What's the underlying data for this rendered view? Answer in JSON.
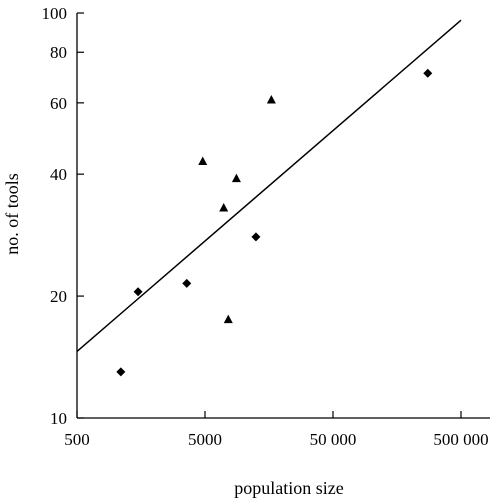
{
  "chart_data": {
    "type": "scatter",
    "title": "",
    "xlabel": "population size",
    "ylabel": "no. of tools",
    "x_scale": "log",
    "y_scale": "log",
    "xlim": [
      500,
      500000
    ],
    "ylim": [
      10,
      100
    ],
    "x_ticks": [
      500,
      5000,
      50000,
      500000
    ],
    "x_tick_labels": [
      "500",
      "5000",
      "50 000",
      "500 000"
    ],
    "y_ticks": [
      10,
      20,
      40,
      60,
      80,
      100
    ],
    "y_tick_labels": [
      "10",
      "20",
      "40",
      "60",
      "80",
      "100"
    ],
    "grid": false,
    "legend": "none",
    "series": [
      {
        "marker": "diamond",
        "points": [
          {
            "x": 1100,
            "y": 13
          },
          {
            "x": 1500,
            "y": 20.5
          },
          {
            "x": 3600,
            "y": 21.5
          },
          {
            "x": 12500,
            "y": 28
          },
          {
            "x": 275000,
            "y": 71
          }
        ]
      },
      {
        "marker": "triangle",
        "points": [
          {
            "x": 4800,
            "y": 43
          },
          {
            "x": 7000,
            "y": 33
          },
          {
            "x": 7600,
            "y": 17.5
          },
          {
            "x": 8800,
            "y": 39
          },
          {
            "x": 16500,
            "y": 61
          }
        ]
      }
    ],
    "fit_line": {
      "x": [
        500,
        500000
      ],
      "y": [
        14.6,
        96
      ]
    }
  }
}
